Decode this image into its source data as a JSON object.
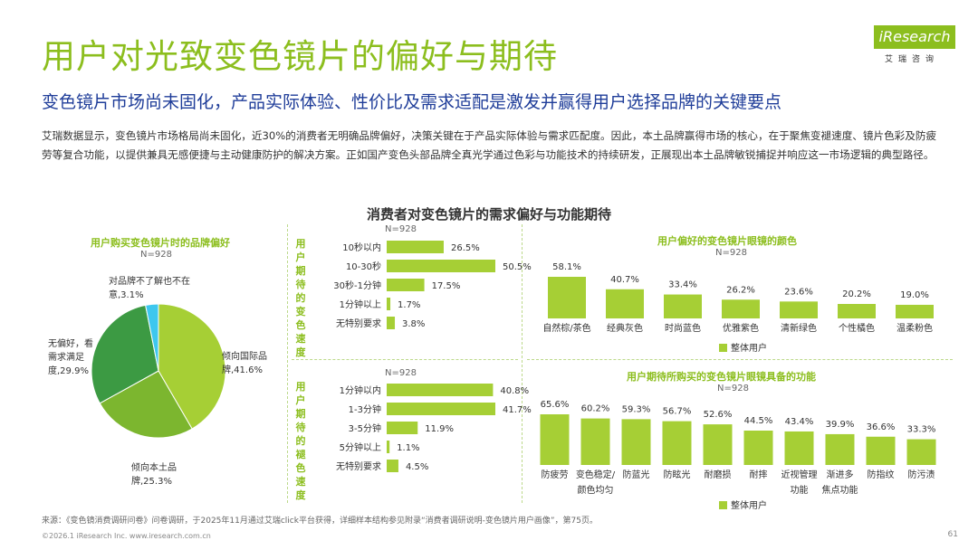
{
  "header": {
    "title": "用户对光致变色镜片的偏好与期待",
    "subtitle": "变色镜片市场尚未固化，产品实际体验、性价比及需求适配是激发并赢得用户选择品牌的关键要点",
    "intro": "艾瑞数据显示，变色镜片市场格局尚未固化，近30%的消费者无明确品牌偏好，决策关键在于产品实际体验与需求匹配度。因此，本土品牌赢得市场的核心，在于聚焦变褪速度、镜片色彩及防疲劳等复合功能，以提供兼具无感便捷与主动健康防护的解决方案。正如国产变色头部品牌全真光学通过色彩与功能技术的持续研发，正展现出本土品牌敏锐捕捉并响应这一市场逻辑的典型路径。"
  },
  "logo": {
    "brand": "iResearch",
    "sub": "艾瑞咨询"
  },
  "center_title": "消费者对变色镜片的需求偏好与功能期待",
  "chart_data": [
    {
      "id": "brand",
      "type": "pie",
      "title": "用户购买变色镜片时的品牌偏好",
      "n": "N=928",
      "slices": [
        {
          "label": "倾向国际品牌,41.6%",
          "value": 41.6,
          "color": "#a6cf35"
        },
        {
          "label": "倾向本土品牌,25.3%",
          "value": 25.3,
          "color": "#7cb62f"
        },
        {
          "label": "无偏好，看需求满足度,29.9%",
          "value": 29.9,
          "color": "#3c9a43"
        },
        {
          "label": "对品牌不了解也不在意,3.1%",
          "value": 3.1,
          "color": "#3ec7ee"
        }
      ],
      "label_lines": [
        {
          "lines": [
            "倾向国际品",
            "牌,41.6%"
          ]
        },
        {
          "lines": [
            "倾向本土品",
            "牌,25.3%"
          ]
        },
        {
          "lines": [
            "无偏好，看",
            "需求满足",
            "度,29.9%"
          ]
        },
        {
          "lines": [
            "对品牌不了解也不在",
            "意,3.1%"
          ]
        }
      ]
    },
    {
      "id": "fade_out",
      "type": "bar",
      "orientation": "horizontal",
      "title": "用户期待的变色速度",
      "n": "N=928",
      "categories": [
        "10秒以内",
        "10-30秒",
        "30秒-1分钟",
        "1分钟以上",
        "无特别要求"
      ],
      "values": [
        26.5,
        50.5,
        17.5,
        1.7,
        3.8
      ],
      "labels": [
        "26.5%",
        "50.5%",
        "17.5%",
        "1.7%",
        "3.8%"
      ],
      "xlim": [
        0,
        50.5
      ]
    },
    {
      "id": "fade_back",
      "type": "bar",
      "orientation": "horizontal",
      "title": "用户期待的褪色速度",
      "n": "N=928",
      "categories": [
        "1分钟以内",
        "1-3分钟",
        "3-5分钟",
        "5分钟以上",
        "无特别要求"
      ],
      "values": [
        40.8,
        41.7,
        11.9,
        1.1,
        4.5
      ],
      "labels": [
        "40.8%",
        "41.7%",
        "11.9%",
        "1.1%",
        "4.5%"
      ],
      "xlim": [
        0,
        41.7
      ]
    },
    {
      "id": "color",
      "type": "bar",
      "orientation": "vertical",
      "title": "用户偏好的变色镜片眼镜的颜色",
      "n": "N=928",
      "categories": [
        "自然棕/茶色",
        "经典灰色",
        "时尚蓝色",
        "优雅紫色",
        "清新绿色",
        "个性橘色",
        "温柔粉色"
      ],
      "values": [
        58.1,
        40.7,
        33.4,
        26.2,
        23.6,
        20.2,
        19.0
      ],
      "labels": [
        "58.1%",
        "40.7%",
        "33.4%",
        "26.2%",
        "23.6%",
        "20.2%",
        "19.0%"
      ],
      "legend": "整体用户",
      "ylim": [
        0,
        58.1
      ]
    },
    {
      "id": "function",
      "type": "bar",
      "orientation": "vertical",
      "title": "用户期待所购买的变色镜片眼镜具备的功能",
      "n": "N=928",
      "categories": [
        [
          "防疲劳"
        ],
        [
          "变色稳定/",
          "颜色均匀"
        ],
        [
          "防蓝光"
        ],
        [
          "防眩光"
        ],
        [
          "耐磨损"
        ],
        [
          "耐摔"
        ],
        [
          "近视管理",
          "功能"
        ],
        [
          "渐进多",
          "焦点功能"
        ],
        [
          "防指纹"
        ],
        [
          "防污渍"
        ]
      ],
      "values": [
        65.6,
        60.2,
        59.3,
        56.7,
        52.6,
        44.5,
        43.4,
        39.9,
        36.6,
        33.3
      ],
      "labels": [
        "65.6%",
        "60.2%",
        "59.3%",
        "56.7%",
        "52.6%",
        "44.5%",
        "43.4%",
        "39.9%",
        "36.6%",
        "33.3%"
      ],
      "legend": "整体用户",
      "ylim": [
        0,
        65.6
      ]
    }
  ],
  "side_labels": {
    "fade_out": [
      "用",
      "户",
      "期",
      "待",
      "的",
      "变",
      "色",
      "速",
      "度"
    ],
    "fade_back": [
      "用",
      "户",
      "期",
      "待",
      "的",
      "褪",
      "色",
      "速",
      "度"
    ]
  },
  "colors": {
    "bar": "#a6cf35",
    "accent": "#8cbe1e",
    "subtitle": "#1f3d99"
  },
  "footer": {
    "source": "来源：《变色镜消费调研问卷》问卷调研，于2025年11月通过艾瑞click平台获得，详细样本结构参见附录“消费者调研说明-变色镜片用户画像”，第75页。",
    "copyright": "©2026.1 iResearch Inc.                    www.iresearch.com.cn",
    "page": "61"
  }
}
